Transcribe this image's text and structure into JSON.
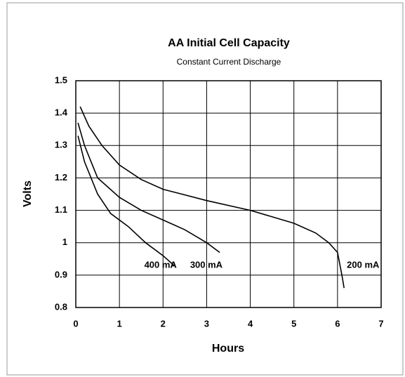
{
  "chart_data": {
    "type": "line",
    "title": "AA Initial Cell Capacity",
    "subtitle": "Constant Current Discharge",
    "xlabel": "Hours",
    "ylabel": "Volts",
    "xlim": [
      0,
      7
    ],
    "xticks": [
      0,
      1,
      2,
      3,
      4,
      5,
      6,
      7
    ],
    "ylim": [
      0.8,
      1.5
    ],
    "yticks": [
      0.8,
      0.9,
      1,
      1.1,
      1.2,
      1.3,
      1.4,
      1.5
    ],
    "grid": true,
    "series": [
      {
        "name": "200 mA",
        "color": "#000000",
        "x": [
          0.1,
          0.3,
          0.6,
          1,
          1.5,
          2,
          3,
          4,
          5,
          5.5,
          5.8,
          6.0,
          6.1,
          6.15
        ],
        "values": [
          1.42,
          1.36,
          1.3,
          1.24,
          1.195,
          1.165,
          1.13,
          1.1,
          1.06,
          1.03,
          1.0,
          0.97,
          0.9,
          0.86
        ]
      },
      {
        "name": "300 mA",
        "color": "#000000",
        "x": [
          0.05,
          0.2,
          0.5,
          1,
          1.5,
          2,
          2.5,
          3,
          3.3
        ],
        "values": [
          1.37,
          1.3,
          1.2,
          1.14,
          1.1,
          1.07,
          1.04,
          1.0,
          0.97
        ]
      },
      {
        "name": "400 mA",
        "color": "#000000",
        "x": [
          0.05,
          0.2,
          0.5,
          0.8,
          1.2,
          1.6,
          2,
          2.25
        ],
        "values": [
          1.33,
          1.25,
          1.15,
          1.09,
          1.05,
          1.0,
          0.96,
          0.93
        ]
      }
    ]
  }
}
